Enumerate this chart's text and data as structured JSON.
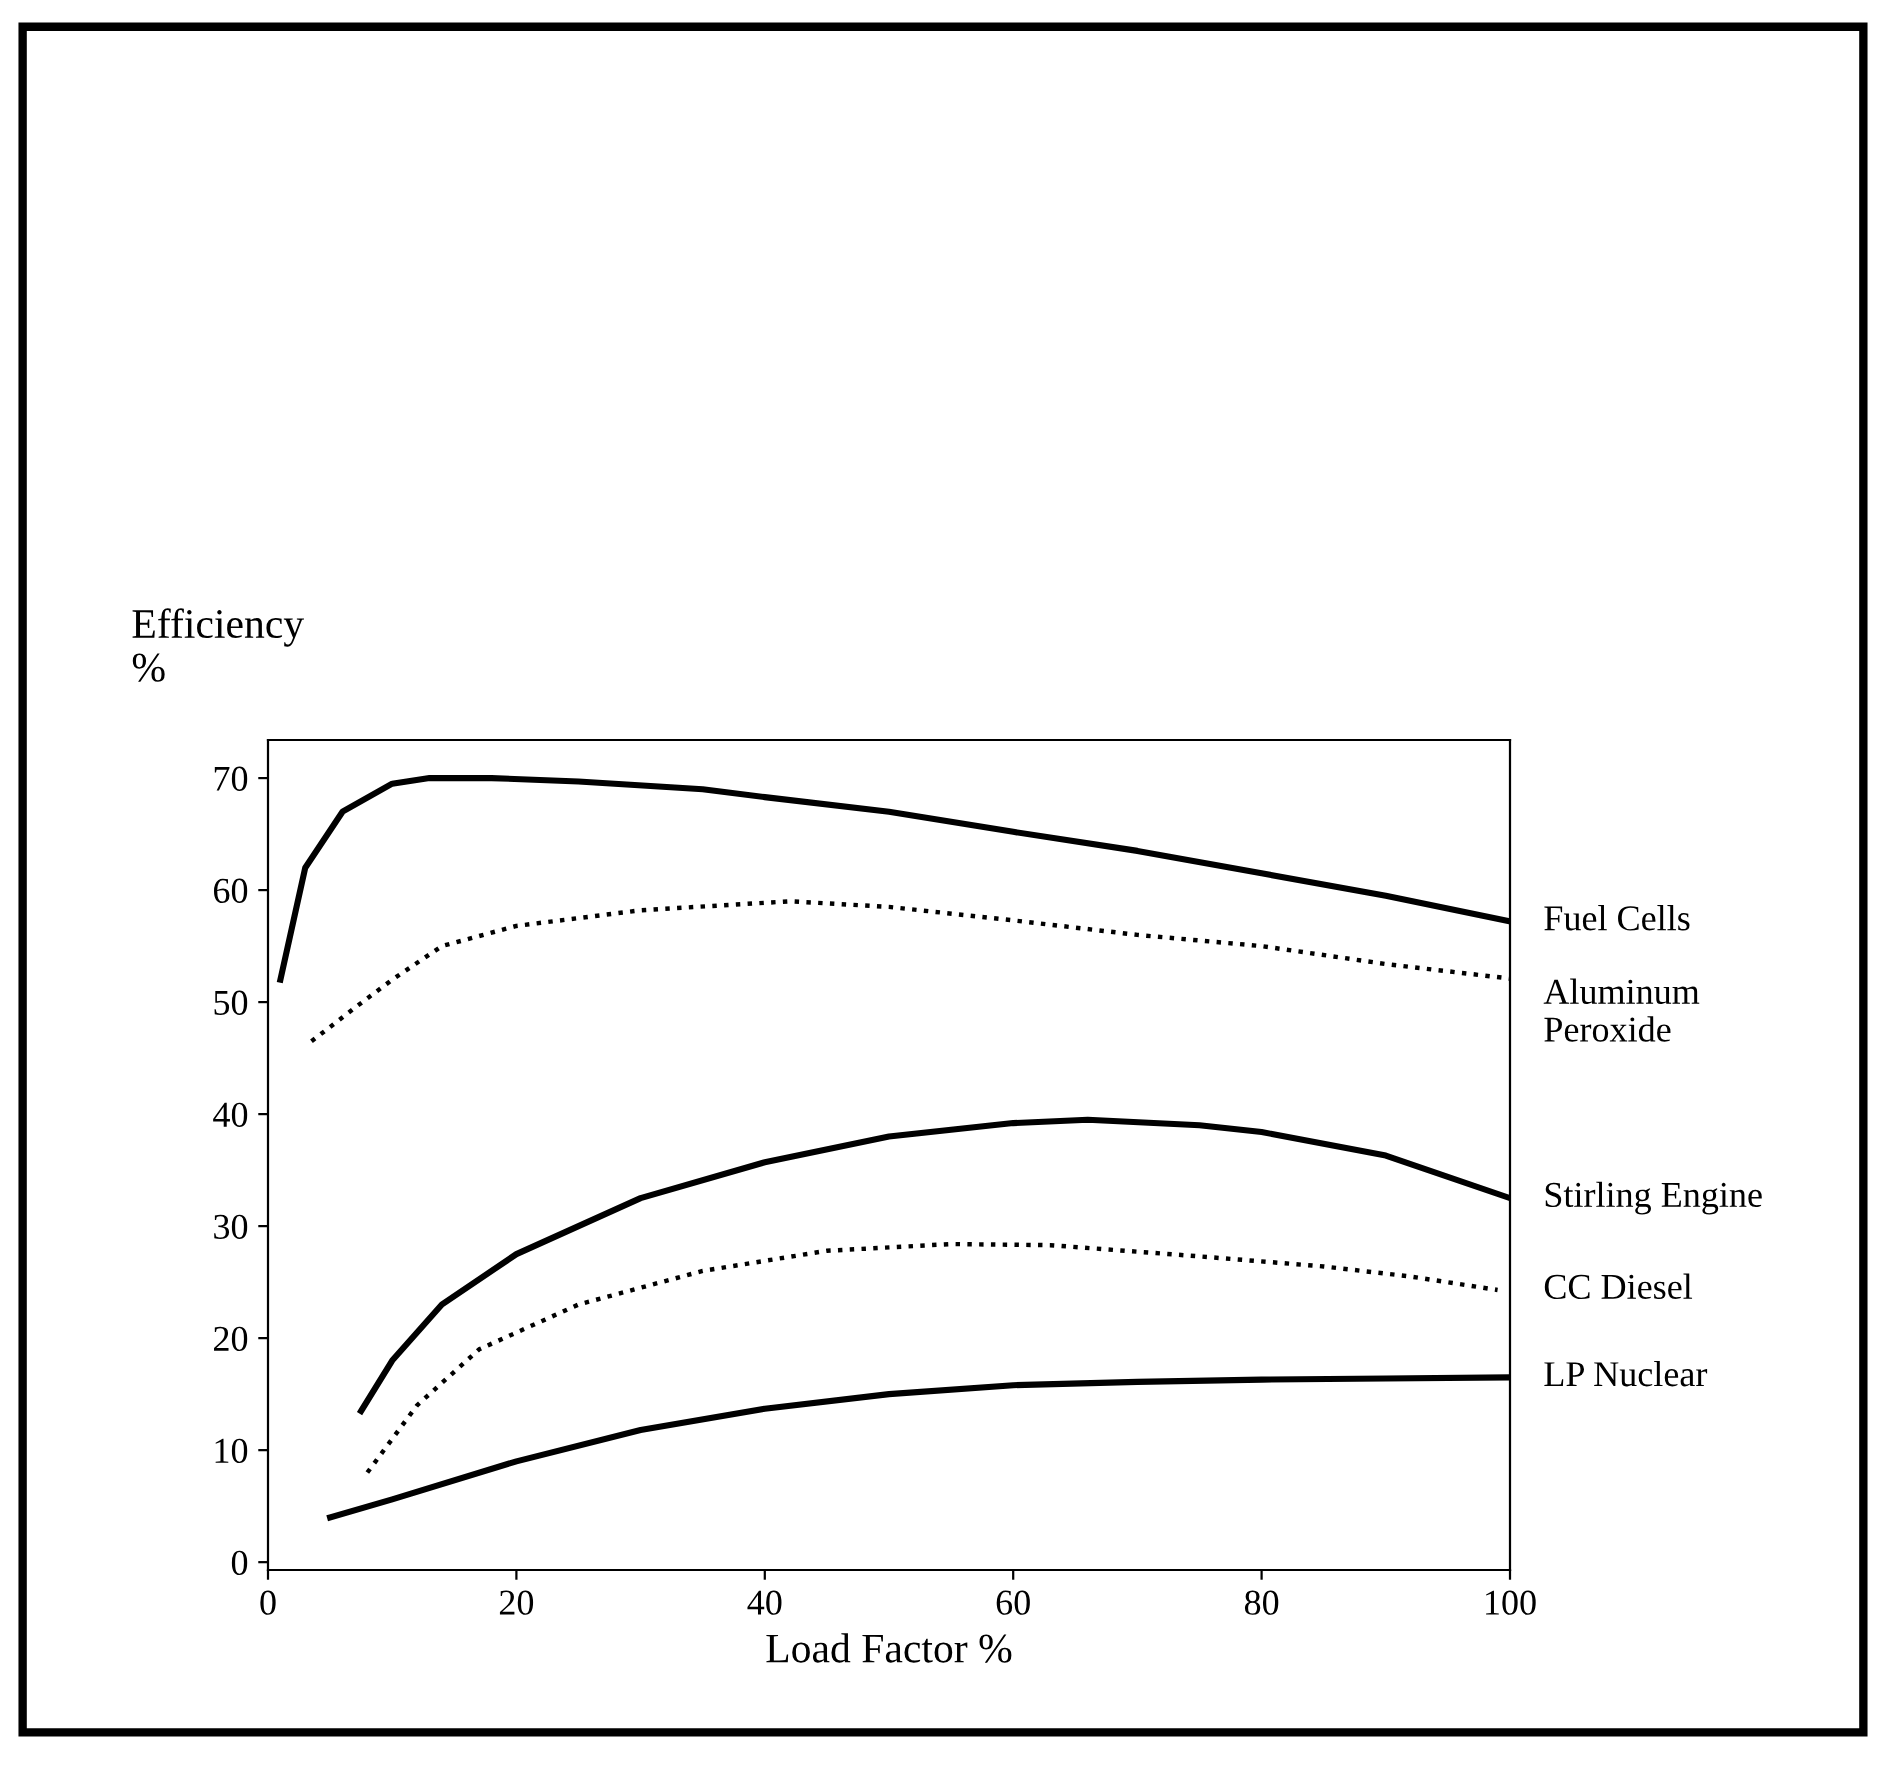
{
  "chart_data": {
    "type": "line",
    "xlabel": "Load Factor %",
    "ylabel": "Efficiency\n%",
    "xlim": [
      0,
      100
    ],
    "ylim": [
      -0.7,
      73.4
    ],
    "xticks": [
      0,
      20,
      40,
      60,
      80,
      100
    ],
    "yticks": [
      0,
      10,
      20,
      30,
      40,
      50,
      60,
      70
    ],
    "grid": false,
    "legend": false,
    "marker": "none",
    "series": [
      {
        "name": "Fuel Cells",
        "color": "#000000",
        "line_style": "solid",
        "x": [
          1,
          3,
          6,
          10,
          13,
          18,
          25,
          35,
          40,
          50,
          60,
          70,
          80,
          90,
          100
        ],
        "values": [
          52,
          62,
          67,
          69.5,
          70,
          70,
          69.7,
          69,
          68.3,
          67,
          65.2,
          63.5,
          61.5,
          59.5,
          57.2
        ]
      },
      {
        "name": "Aluminum\nPeroxide",
        "color": "#000000",
        "line_style": "dotted",
        "x": [
          3.5,
          7,
          10,
          14,
          20,
          30,
          42,
          50,
          60,
          70,
          80,
          90,
          100
        ],
        "values": [
          46.5,
          49.5,
          52,
          55,
          56.8,
          58.2,
          59,
          58.5,
          57.3,
          56,
          55,
          53.4,
          52.1
        ]
      },
      {
        "name": "Stirling Engine",
        "color": "#000000",
        "line_style": "solid",
        "x": [
          7.5,
          10,
          14,
          20,
          30,
          40,
          50,
          60,
          66,
          75,
          80,
          90,
          100
        ],
        "values": [
          13.5,
          18,
          23,
          27.5,
          32.5,
          35.7,
          38,
          39.2,
          39.5,
          39,
          38.4,
          36.3,
          32.5
        ]
      },
      {
        "name": "CC Diesel",
        "color": "#000000",
        "line_style": "dotted",
        "x": [
          8,
          12,
          17,
          25,
          35,
          45,
          55,
          63,
          75,
          85,
          92,
          99
        ],
        "values": [
          8,
          14,
          19,
          23,
          26,
          27.8,
          28.4,
          28.3,
          27.3,
          26.4,
          25.5,
          24.3
        ]
      },
      {
        "name": "LP Nuclear",
        "color": "#000000",
        "line_style": "solid",
        "x": [
          5,
          10,
          20,
          30,
          40,
          50,
          60,
          70,
          80,
          90,
          100
        ],
        "values": [
          4,
          5.6,
          9,
          11.8,
          13.7,
          15,
          15.8,
          16.1,
          16.3,
          16.4,
          16.5
        ]
      }
    ]
  }
}
